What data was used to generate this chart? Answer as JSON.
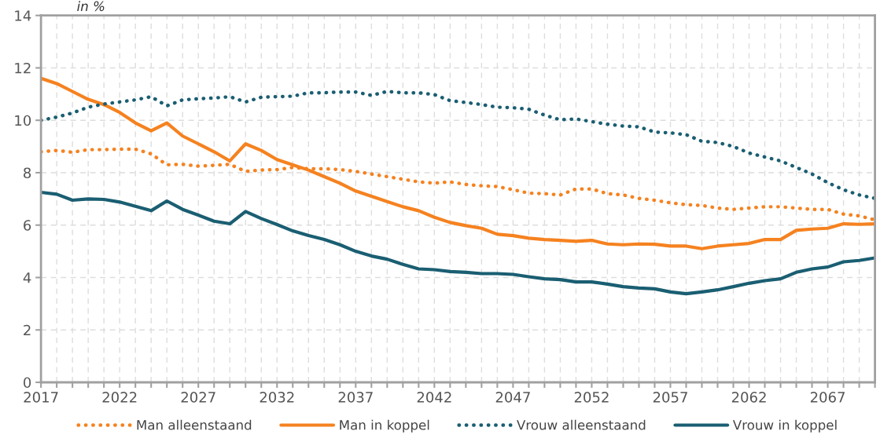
{
  "chart_data": {
    "type": "line",
    "ylabel": "in %",
    "x": [
      2017,
      2018,
      2019,
      2020,
      2021,
      2022,
      2023,
      2024,
      2025,
      2026,
      2027,
      2028,
      2029,
      2030,
      2031,
      2032,
      2033,
      2034,
      2035,
      2036,
      2037,
      2038,
      2039,
      2040,
      2041,
      2042,
      2043,
      2044,
      2045,
      2046,
      2047,
      2048,
      2049,
      2050,
      2051,
      2052,
      2053,
      2054,
      2055,
      2056,
      2057,
      2058,
      2059,
      2060,
      2061,
      2062,
      2063,
      2064,
      2065,
      2066,
      2067,
      2068,
      2069,
      2070
    ],
    "series": [
      {
        "name": "Man alleenstaand",
        "color": "#f58220",
        "line_style": "dotted",
        "values": [
          8.8,
          8.85,
          8.78,
          8.88,
          8.88,
          8.9,
          8.9,
          8.72,
          8.3,
          8.32,
          8.25,
          8.28,
          8.32,
          8.05,
          8.1,
          8.12,
          8.2,
          8.15,
          8.15,
          8.12,
          8.05,
          7.95,
          7.85,
          7.75,
          7.65,
          7.6,
          7.65,
          7.55,
          7.5,
          7.47,
          7.35,
          7.22,
          7.2,
          7.15,
          7.38,
          7.38,
          7.2,
          7.15,
          7.02,
          6.95,
          6.85,
          6.78,
          6.75,
          6.65,
          6.6,
          6.65,
          6.7,
          6.7,
          6.65,
          6.6,
          6.6,
          6.42,
          6.35,
          6.2
        ]
      },
      {
        "name": "Man in koppel",
        "color": "#f58220",
        "line_style": "solid",
        "values": [
          11.6,
          11.4,
          11.1,
          10.8,
          10.6,
          10.3,
          9.9,
          9.6,
          9.9,
          9.4,
          9.1,
          8.8,
          8.45,
          9.1,
          8.85,
          8.5,
          8.3,
          8.1,
          7.85,
          7.6,
          7.3,
          7.1,
          6.9,
          6.7,
          6.55,
          6.3,
          6.1,
          5.98,
          5.88,
          5.65,
          5.6,
          5.5,
          5.45,
          5.42,
          5.38,
          5.42,
          5.28,
          5.25,
          5.28,
          5.27,
          5.2,
          5.2,
          5.1,
          5.2,
          5.25,
          5.3,
          5.45,
          5.45,
          5.8,
          5.85,
          5.88,
          6.05,
          6.03,
          6.05
        ]
      },
      {
        "name": "Vrouw alleenstaand",
        "color": "#1a5e72",
        "line_style": "dotted",
        "values": [
          10.0,
          10.12,
          10.28,
          10.5,
          10.62,
          10.7,
          10.78,
          10.9,
          10.55,
          10.78,
          10.82,
          10.85,
          10.9,
          10.7,
          10.88,
          10.9,
          10.92,
          11.05,
          11.05,
          11.08,
          11.08,
          10.95,
          11.1,
          11.05,
          11.05,
          10.98,
          10.75,
          10.68,
          10.6,
          10.5,
          10.48,
          10.42,
          10.2,
          10.02,
          10.05,
          9.95,
          9.85,
          9.78,
          9.75,
          9.55,
          9.52,
          9.45,
          9.2,
          9.15,
          9.0,
          8.75,
          8.6,
          8.45,
          8.2,
          7.95,
          7.62,
          7.35,
          7.15,
          7.02
        ]
      },
      {
        "name": "Vrouw in koppel",
        "color": "#1a5e72",
        "line_style": "solid",
        "values": [
          7.25,
          7.18,
          6.95,
          7.0,
          6.98,
          6.88,
          6.72,
          6.55,
          6.92,
          6.6,
          6.38,
          6.15,
          6.05,
          6.52,
          6.25,
          6.02,
          5.78,
          5.6,
          5.45,
          5.25,
          5.0,
          4.82,
          4.7,
          4.5,
          4.33,
          4.3,
          4.23,
          4.2,
          4.15,
          4.15,
          4.12,
          4.03,
          3.95,
          3.92,
          3.83,
          3.83,
          3.75,
          3.65,
          3.6,
          3.57,
          3.45,
          3.38,
          3.45,
          3.53,
          3.65,
          3.78,
          3.88,
          3.95,
          4.2,
          4.33,
          4.4,
          4.6,
          4.65,
          4.75
        ]
      }
    ],
    "xlim": [
      2017,
      2070
    ],
    "xticks": [
      2017,
      {
        "value": 2018,
        "label": null
      },
      {
        "value": 2019,
        "label": null
      },
      {
        "value": 2020,
        "label": null
      },
      {
        "value": 2021,
        "label": null
      },
      2022,
      {
        "value": 2023,
        "label": null
      },
      {
        "value": 2024,
        "label": null
      },
      {
        "value": 2025,
        "label": null
      },
      {
        "value": 2026,
        "label": null
      },
      2027,
      {
        "value": 2028,
        "label": null
      },
      {
        "value": 2029,
        "label": null
      },
      {
        "value": 2030,
        "label": null
      },
      {
        "value": 2031,
        "label": null
      },
      2032,
      {
        "value": 2033,
        "label": null
      },
      {
        "value": 2034,
        "label": null
      },
      {
        "value": 2035,
        "label": null
      },
      {
        "value": 2036,
        "label": null
      },
      2037,
      {
        "value": 2038,
        "label": null
      },
      {
        "value": 2039,
        "label": null
      },
      {
        "value": 2040,
        "label": null
      },
      {
        "value": 2041,
        "label": null
      },
      2042,
      {
        "value": 2043,
        "label": null
      },
      {
        "value": 2044,
        "label": null
      },
      {
        "value": 2045,
        "label": null
      },
      {
        "value": 2046,
        "label": null
      },
      2047,
      {
        "value": 2048,
        "label": null
      },
      {
        "value": 2049,
        "label": null
      },
      {
        "value": 2050,
        "label": null
      },
      {
        "value": 2051,
        "label": null
      },
      2052,
      {
        "value": 2053,
        "label": null
      },
      {
        "value": 2054,
        "label": null
      },
      {
        "value": 2055,
        "label": null
      },
      {
        "value": 2056,
        "label": null
      },
      2057,
      {
        "value": 2058,
        "label": null
      },
      {
        "value": 2059,
        "label": null
      },
      {
        "value": 2060,
        "label": null
      },
      {
        "value": 2061,
        "label": null
      },
      2062,
      {
        "value": 2063,
        "label": null
      },
      {
        "value": 2064,
        "label": null
      },
      {
        "value": 2065,
        "label": null
      },
      {
        "value": 2066,
        "label": null
      },
      2067,
      {
        "value": 2068,
        "label": null
      },
      {
        "value": 2069,
        "label": null
      },
      {
        "value": 2070,
        "label": null
      }
    ],
    "ylim": [
      0,
      14
    ],
    "yticks": [
      0,
      2,
      4,
      6,
      8,
      10,
      12,
      14
    ],
    "grid": true,
    "legend": "bottom",
    "marker": "none"
  }
}
